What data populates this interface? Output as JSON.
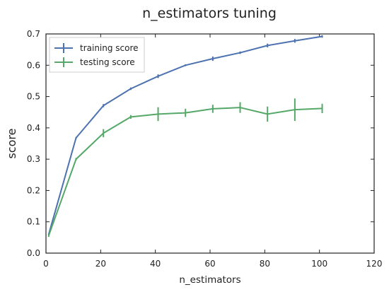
{
  "chart_data": {
    "type": "line",
    "title": "n_estimators tuning",
    "xlabel": "n_estimators",
    "ylabel": "score",
    "xlim": [
      0,
      120
    ],
    "ylim": [
      0.0,
      0.7
    ],
    "xticks": [
      0,
      20,
      40,
      60,
      80,
      100,
      120
    ],
    "yticks": [
      0.0,
      0.1,
      0.2,
      0.3,
      0.4,
      0.5,
      0.6,
      0.7
    ],
    "xtick_labels": [
      "0",
      "20",
      "40",
      "60",
      "80",
      "100",
      "120"
    ],
    "ytick_labels": [
      "0.0",
      "0.1",
      "0.2",
      "0.3",
      "0.4",
      "0.5",
      "0.6",
      "0.7"
    ],
    "grid": false,
    "legend_position": "top-left",
    "x": [
      1,
      11,
      21,
      31,
      41,
      51,
      61,
      71,
      81,
      91,
      101
    ],
    "series": [
      {
        "name": "training score",
        "color": "#4c72b0",
        "values": [
          0.06,
          0.368,
          0.471,
          0.525,
          0.565,
          0.6,
          0.621,
          0.64,
          0.663,
          0.678,
          0.692
        ],
        "errors": [
          0.002,
          0.003,
          0.005,
          0.004,
          0.006,
          0.003,
          0.007,
          0.004,
          0.006,
          0.006,
          0.004
        ]
      },
      {
        "name": "testing score",
        "color": "#55a868",
        "values": [
          0.056,
          0.3,
          0.383,
          0.435,
          0.444,
          0.448,
          0.461,
          0.465,
          0.444,
          0.458,
          0.462
        ],
        "errors": [
          0.004,
          0.004,
          0.013,
          0.006,
          0.022,
          0.013,
          0.013,
          0.017,
          0.024,
          0.036,
          0.015
        ]
      }
    ]
  }
}
